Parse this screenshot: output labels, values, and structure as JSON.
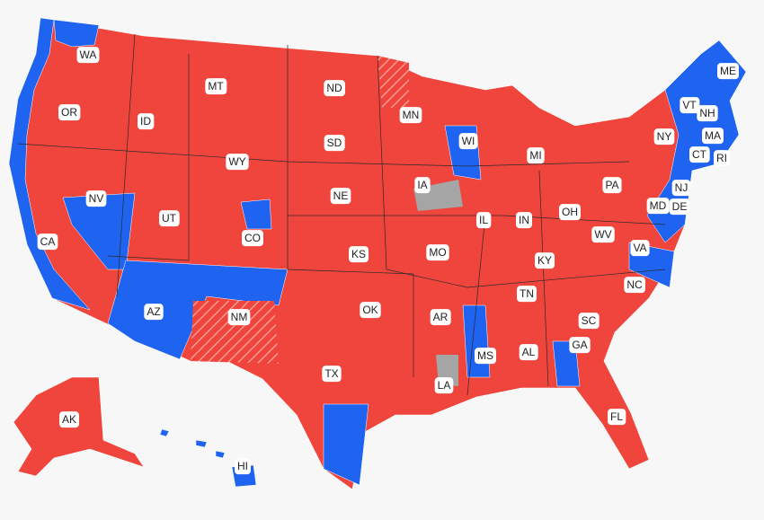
{
  "map": {
    "state_labels": [
      "WA",
      "OR",
      "ID",
      "MT",
      "ND",
      "MN",
      "SD",
      "WY",
      "WI",
      "MI",
      "NY",
      "VT",
      "NH",
      "ME",
      "MA",
      "CT",
      "RI",
      "NV",
      "UT",
      "CO",
      "NE",
      "IA",
      "IL",
      "IN",
      "OH",
      "PA",
      "NJ",
      "MD",
      "DE",
      "CA",
      "KS",
      "MO",
      "KY",
      "WV",
      "VA",
      "AZ",
      "NM",
      "OK",
      "AR",
      "TN",
      "NC",
      "SC",
      "MS",
      "AL",
      "GA",
      "TX",
      "LA",
      "FL",
      "AK",
      "HI"
    ]
  }
}
